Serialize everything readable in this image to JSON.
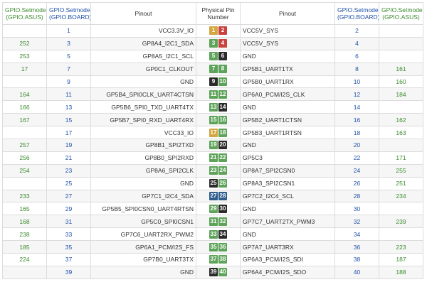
{
  "headers": {
    "asus_left": [
      "GPIO.Setmode",
      "(GPIO.ASUS)"
    ],
    "board_left": [
      "GPIO.Setmode",
      "(GPIO.BOARD)"
    ],
    "pinout_left": "Pinout",
    "physical": [
      "Physical Pin",
      "Number"
    ],
    "pinout_right": "Pinout",
    "board_right": [
      "GPIO.Setmode",
      "(GPIO.BOARD)"
    ],
    "asus_right": [
      "GPIO.Setmode",
      "(GPIO.ASUS)"
    ]
  },
  "colors": {
    "power3v3": "#d4a640",
    "power5v": "#c8433e",
    "ground": "#2b2b2b",
    "gpio": "#5ea35a",
    "i2c": "#2e5c8c"
  },
  "rows": [
    {
      "asus_l": "",
      "board_l": "1",
      "pin_l": "VCC3.3V_IO",
      "phys_l": "1",
      "type_l": "power3v3",
      "phys_r": "2",
      "type_r": "power5v",
      "pin_r": "VCC5V_SYS",
      "board_r": "2",
      "asus_r": ""
    },
    {
      "asus_l": "252",
      "board_l": "3",
      "pin_l": "GP8A4_I2C1_SDA",
      "phys_l": "3",
      "type_l": "gpio",
      "phys_r": "4",
      "type_r": "power5v",
      "pin_r": "VCC5V_SYS",
      "board_r": "4",
      "asus_r": ""
    },
    {
      "asus_l": "253",
      "board_l": "5",
      "pin_l": "GP8A5_I2C1_SCL",
      "phys_l": "5",
      "type_l": "gpio",
      "phys_r": "6",
      "type_r": "ground",
      "pin_r": "GND",
      "board_r": "6",
      "asus_r": ""
    },
    {
      "asus_l": "17",
      "board_l": "7",
      "pin_l": "GP0C1_CLKOUT",
      "phys_l": "7",
      "type_l": "gpio",
      "phys_r": "8",
      "type_r": "gpio",
      "pin_r": "GP5B1_UART1TX",
      "board_r": "8",
      "asus_r": "161"
    },
    {
      "asus_l": "",
      "board_l": "9",
      "pin_l": "GND",
      "phys_l": "9",
      "type_l": "ground",
      "phys_r": "10",
      "type_r": "gpio",
      "pin_r": "GP5B0_UART1RX",
      "board_r": "10",
      "asus_r": "160"
    },
    {
      "asus_l": "164",
      "board_l": "11",
      "pin_l": "GP5B4_SPI0CLK_UART4CTSN",
      "phys_l": "11",
      "type_l": "gpio",
      "phys_r": "12",
      "type_r": "gpio",
      "pin_r": "GP6A0_PCM/I2S_CLK",
      "board_r": "12",
      "asus_r": "184"
    },
    {
      "asus_l": "166",
      "board_l": "13",
      "pin_l": "GP5B6_SPI0_TXD_UART4TX",
      "phys_l": "13",
      "type_l": "gpio",
      "phys_r": "14",
      "type_r": "ground",
      "pin_r": "GND",
      "board_r": "14",
      "asus_r": ""
    },
    {
      "asus_l": "167",
      "board_l": "15",
      "pin_l": "GP5B7_SPI0_RXD_UART4RX",
      "phys_l": "15",
      "type_l": "gpio",
      "phys_r": "16",
      "type_r": "gpio",
      "pin_r": "GP5B2_UART1CTSN",
      "board_r": "16",
      "asus_r": "162"
    },
    {
      "asus_l": "",
      "board_l": "17",
      "pin_l": "VCC33_IO",
      "phys_l": "17",
      "type_l": "power3v3",
      "phys_r": "18",
      "type_r": "gpio",
      "pin_r": "GP5B3_UART1RTSN",
      "board_r": "18",
      "asus_r": "163"
    },
    {
      "asus_l": "257",
      "board_l": "19",
      "pin_l": "GP8B1_SPI2TXD",
      "phys_l": "19",
      "type_l": "gpio",
      "phys_r": "20",
      "type_r": "ground",
      "pin_r": "GND",
      "board_r": "20",
      "asus_r": ""
    },
    {
      "asus_l": "256",
      "board_l": "21",
      "pin_l": "GP8B0_SPI2RXD",
      "phys_l": "21",
      "type_l": "gpio",
      "phys_r": "22",
      "type_r": "gpio",
      "pin_r": "GP5C3",
      "board_r": "22",
      "asus_r": "171"
    },
    {
      "asus_l": "254",
      "board_l": "23",
      "pin_l": "GP8A6_SPI2CLK",
      "phys_l": "23",
      "type_l": "gpio",
      "phys_r": "24",
      "type_r": "gpio",
      "pin_r": "GP8A7_SPI2CSN0",
      "board_r": "24",
      "asus_r": "255"
    },
    {
      "asus_l": "",
      "board_l": "25",
      "pin_l": "GND",
      "phys_l": "25",
      "type_l": "ground",
      "phys_r": "26",
      "type_r": "gpio",
      "pin_r": "GP8A3_SPI2CSN1",
      "board_r": "26",
      "asus_r": "251"
    },
    {
      "asus_l": "233",
      "board_l": "27",
      "pin_l": "GP7C1_I2C4_SDA",
      "phys_l": "27",
      "type_l": "i2c",
      "phys_r": "28",
      "type_r": "i2c",
      "pin_r": "GP7C2_I2C4_SCL",
      "board_r": "28",
      "asus_r": "234"
    },
    {
      "asus_l": "165",
      "board_l": "29",
      "pin_l": "GP5B5_SPI0CSN0_UART4RTSN",
      "phys_l": "29",
      "type_l": "gpio",
      "phys_r": "30",
      "type_r": "ground",
      "pin_r": "GND",
      "board_r": "30",
      "asus_r": ""
    },
    {
      "asus_l": "168",
      "board_l": "31",
      "pin_l": "GP5C0_SPI0CSN1",
      "phys_l": "31",
      "type_l": "gpio",
      "phys_r": "32",
      "type_r": "gpio",
      "pin_r": "GP7C7_UART2TX_PWM3",
      "board_r": "32",
      "asus_r": "239"
    },
    {
      "asus_l": "238",
      "board_l": "33",
      "pin_l": "GP7C6_UART2RX_PWM2",
      "phys_l": "33",
      "type_l": "gpio",
      "phys_r": "34",
      "type_r": "ground",
      "pin_r": "GND",
      "board_r": "34",
      "asus_r": ""
    },
    {
      "asus_l": "185",
      "board_l": "35",
      "pin_l": "GP6A1_PCM/I2S_FS",
      "phys_l": "35",
      "type_l": "gpio",
      "phys_r": "36",
      "type_r": "gpio",
      "pin_r": "GP7A7_UART3RX",
      "board_r": "36",
      "asus_r": "223"
    },
    {
      "asus_l": "224",
      "board_l": "37",
      "pin_l": "GP7B0_UART3TX",
      "phys_l": "37",
      "type_l": "gpio",
      "phys_r": "38",
      "type_r": "gpio",
      "pin_r": "GP6A3_PCM/I2S_SDI",
      "board_r": "38",
      "asus_r": "187"
    },
    {
      "asus_l": "",
      "board_l": "39",
      "pin_l": "GND",
      "phys_l": "39",
      "type_l": "ground",
      "phys_r": "40",
      "type_r": "gpio",
      "pin_r": "GP6A4_PCM/I2S_SDO",
      "board_r": "40",
      "asus_r": "188"
    }
  ]
}
